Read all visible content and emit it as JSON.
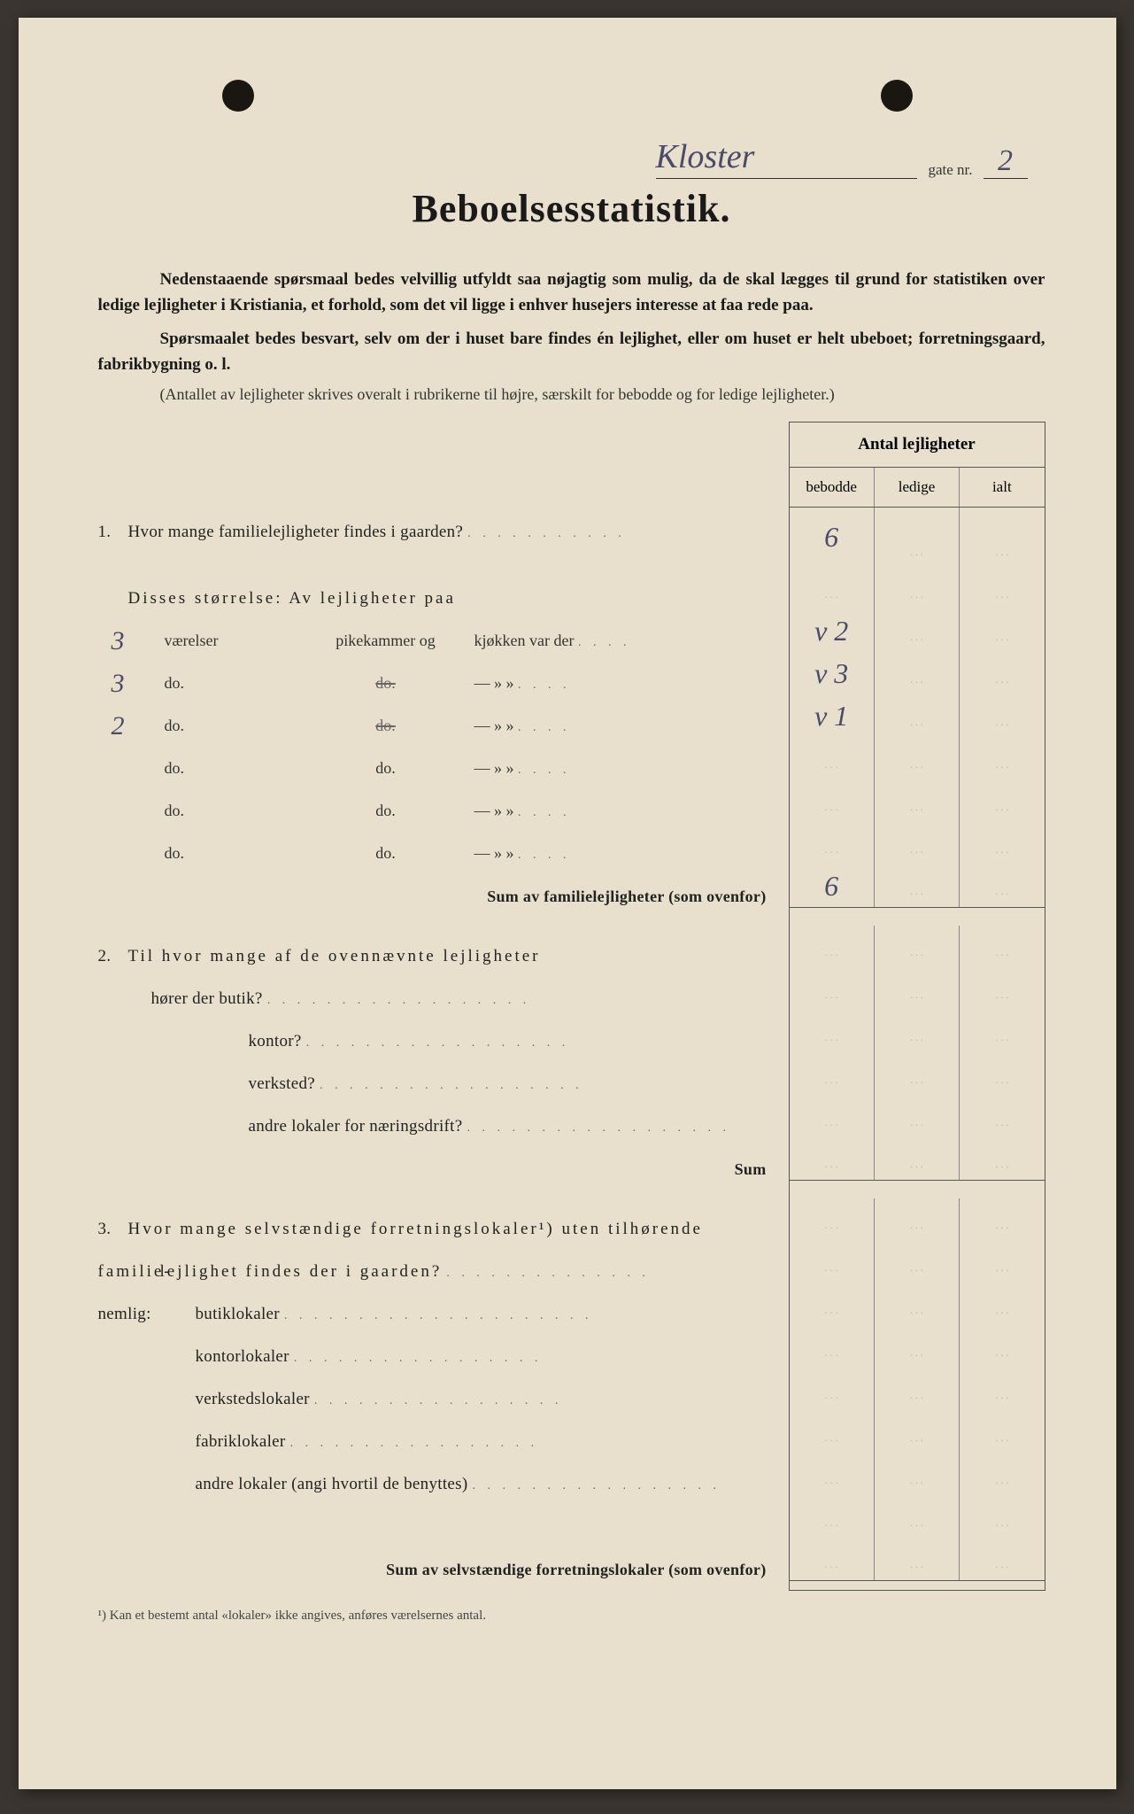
{
  "background_color": "#e8e0cc",
  "text_color": "#1a1a1a",
  "handwriting_color": "#4a4a6a",
  "header": {
    "street_name": "Kloster",
    "gate_label": "gate nr.",
    "gate_nr": "2"
  },
  "title": "Beboelsesstatistik.",
  "intro": {
    "p1": "Nedenstaaende spørsmaal bedes velvillig utfyldt saa nøjagtig som mulig, da de skal lægges til grund for statistiken over ledige lejligheter i Kristiania, et forhold, som det vil ligge i enhver husejers interesse at faa rede paa.",
    "p2": "Spørsmaalet bedes besvart, selv om der i huset bare findes én lejlighet, eller om huset er helt ubeboet; forretningsgaard, fabrikbygning o. l.",
    "p3": "(Antallet av lejligheter skrives overalt i rubrikerne til højre, særskilt for bebodde og for ledige lejligheter.)"
  },
  "table": {
    "header": "Antal lejligheter",
    "cols": [
      "bebodde",
      "ledige",
      "ialt"
    ]
  },
  "q1": {
    "text": "Hvor mange familielejligheter findes i gaarden?",
    "value": "6",
    "size_label": "Disses størrelse:   Av lejligheter paa",
    "rows": [
      {
        "rooms": "3",
        "col2": "værelser",
        "col3": "pikekammer og",
        "col4": "kjøkken var der",
        "bebodde": "2"
      },
      {
        "rooms": "3",
        "col2": "do.",
        "col3_strike": true,
        "col4": "—     »     »",
        "bebodde": "3"
      },
      {
        "rooms": "2",
        "col2": "do.",
        "col3_strike": true,
        "col4": "—     »     »",
        "bebodde": "1"
      },
      {
        "rooms": "",
        "col2": "do.",
        "col3": "do.",
        "col4": "—     »     »",
        "bebodde": ""
      },
      {
        "rooms": "",
        "col2": "do.",
        "col3": "do.",
        "col4": "—     »     »",
        "bebodde": ""
      },
      {
        "rooms": "",
        "col2": "do.",
        "col3": "do.",
        "col4": "—     »     »",
        "bebodde": ""
      }
    ],
    "sum_label": "Sum av familielejligheter (som ovenfor)",
    "sum_value": "6"
  },
  "q2": {
    "text": "Til hvor mange af de ovennævnte lejligheter",
    "items": [
      "hører der butik?",
      "kontor?",
      "verksted?",
      "andre lokaler for næringsdrift?"
    ],
    "sum_label": "Sum"
  },
  "q3": {
    "text_a": "Hvor mange selvstændige forretningslokaler¹) uten tilhørende familie-",
    "text_b": "lejlighet findes der i gaarden?",
    "nemlig": "nemlig:",
    "items": [
      "butiklokaler",
      "kontorlokaler",
      "verkstedslokaler",
      "fabriklokaler",
      "andre lokaler (angi hvortil de benyttes)"
    ],
    "sum_label": "Sum av selvstændige forretningslokaler (som ovenfor)"
  },
  "footnote": "¹)  Kan et bestemt antal «lokaler» ikke angives, anføres værelsernes antal."
}
